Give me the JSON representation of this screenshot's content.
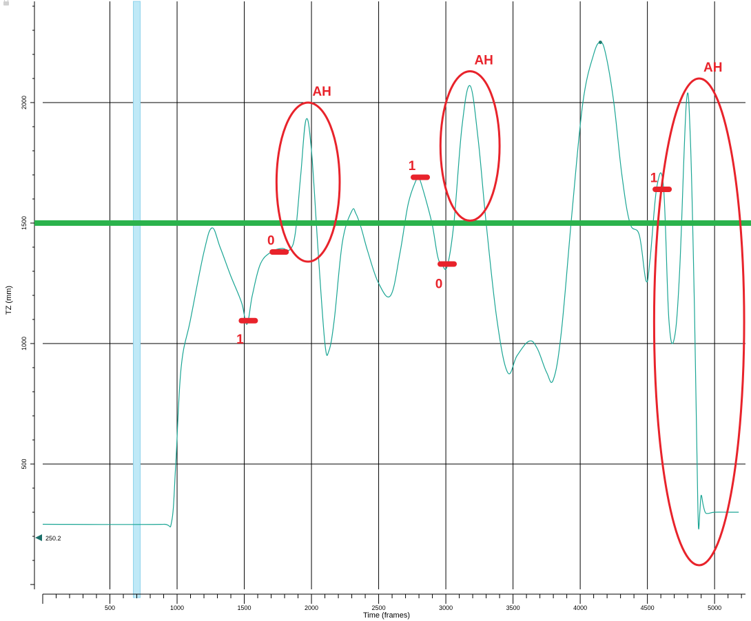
{
  "chart_data": {
    "type": "line",
    "xlabel": "Time (frames)",
    "ylabel": "TZ (mm)",
    "xlim": [
      0,
      5230
    ],
    "ylim": [
      -20,
      2420
    ],
    "x_ticks": [
      500,
      1000,
      1500,
      2000,
      2500,
      3000,
      3500,
      4000,
      4500,
      5000
    ],
    "y_ticks": [
      500,
      1000,
      1500,
      2000
    ],
    "grid": true,
    "cursor": {
      "label": "250.2",
      "value": 250.2
    },
    "highlight_x": 700,
    "threshold": {
      "value": 1500,
      "color": "#2bb24c"
    },
    "series": [
      {
        "color": "#1aa594",
        "x": [
          0,
          900,
          960,
          990,
          1030,
          1100,
          1200,
          1260,
          1320,
          1400,
          1480,
          1520,
          1560,
          1620,
          1700,
          1780,
          1840,
          1880,
          1920,
          1960,
          2000,
          2050,
          2100,
          2130,
          2170,
          2230,
          2300,
          2330,
          2370,
          2420,
          2500,
          2590,
          2660,
          2720,
          2780,
          2800,
          2850,
          2900,
          2940,
          2970,
          3010,
          3060,
          3120,
          3180,
          3240,
          3300,
          3380,
          3460,
          3530,
          3620,
          3680,
          3750,
          3800,
          3860,
          3940,
          4020,
          4100,
          4150,
          4190,
          4250,
          4310,
          4370,
          4440,
          4490,
          4520,
          4570,
          4620,
          4660,
          4700,
          4740,
          4790,
          4820,
          4850,
          4870,
          4880,
          4890,
          4900,
          4915,
          4930,
          4950,
          5000,
          5100,
          5180
        ],
        "y": [
          250,
          250,
          262,
          500,
          900,
          1100,
          1380,
          1480,
          1400,
          1280,
          1170,
          1080,
          1200,
          1330,
          1380,
          1395,
          1390,
          1460,
          1700,
          1930,
          1800,
          1380,
          1000,
          970,
          1100,
          1420,
          1550,
          1540,
          1480,
          1380,
          1250,
          1200,
          1380,
          1580,
          1680,
          1690,
          1600,
          1490,
          1360,
          1330,
          1320,
          1500,
          1900,
          2070,
          1850,
          1500,
          1100,
          880,
          950,
          1010,
          980,
          880,
          850,
          1050,
          1550,
          2000,
          2200,
          2250,
          2200,
          2000,
          1700,
          1500,
          1450,
          1260,
          1350,
          1650,
          1650,
          1100,
          1020,
          1300,
          2000,
          1850,
          1150,
          500,
          240,
          300,
          370,
          330,
          300,
          295,
          300,
          300,
          300
        ]
      }
    ],
    "annotations": {
      "marks": [
        {
          "text": "1",
          "x": 1530,
          "y": 1095,
          "label_y": 1020,
          "color": "#e8232b"
        },
        {
          "text": "0",
          "x": 1760,
          "y": 1380,
          "label_y": 1430,
          "color": "#e8232b"
        },
        {
          "text": "1",
          "x": 2810,
          "y": 1690,
          "label_y": 1740,
          "color": "#e8232b"
        },
        {
          "text": "0",
          "x": 3010,
          "y": 1330,
          "label_y": 1250,
          "color": "#e8232b"
        },
        {
          "text": "1",
          "x": 4610,
          "y": 1640,
          "label_y": 1690,
          "color": "#e8232b"
        }
      ],
      "regions": [
        {
          "text": "AH",
          "x_range": [
            1740,
            2210
          ],
          "y_range": [
            1340,
            2000
          ],
          "color": "#e8232b"
        },
        {
          "text": "AH",
          "x_range": [
            2960,
            3400
          ],
          "y_range": [
            1510,
            2130
          ],
          "color": "#e8232b"
        },
        {
          "text": "AH",
          "x_range": [
            4550,
            5220
          ],
          "y_range": [
            80,
            2100
          ],
          "color": "#e8232b"
        }
      ]
    }
  }
}
